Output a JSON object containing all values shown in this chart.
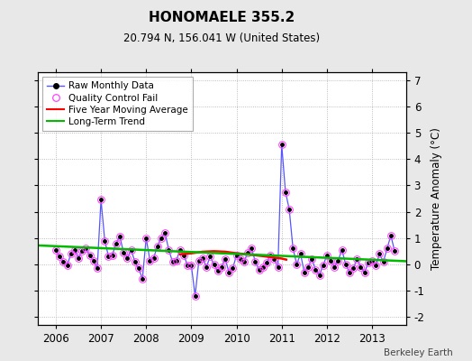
{
  "title": "HONOMAELE 355.2",
  "subtitle": "20.794 N, 156.041 W (United States)",
  "credit": "Berkeley Earth",
  "ylabel": "Temperature Anomaly (°C)",
  "ylim": [
    -2.3,
    7.3
  ],
  "yticks": [
    -2,
    -1,
    0,
    1,
    2,
    3,
    4,
    5,
    6,
    7
  ],
  "xlim_start": 2005.6,
  "xlim_end": 2013.75,
  "xticks": [
    2006,
    2007,
    2008,
    2009,
    2010,
    2011,
    2012,
    2013
  ],
  "bg_color": "#e8e8e8",
  "plot_bg_color": "#ffffff",
  "raw_line_color": "#5555ff",
  "raw_marker_color": "#000000",
  "qc_color": "#ff44ff",
  "moving_avg_color": "#ff0000",
  "trend_color": "#00bb00",
  "raw_data_x": [
    2006.0,
    2006.0833,
    2006.1667,
    2006.25,
    2006.3333,
    2006.4167,
    2006.5,
    2006.5833,
    2006.6667,
    2006.75,
    2006.8333,
    2006.9167,
    2007.0,
    2007.0833,
    2007.1667,
    2007.25,
    2007.3333,
    2007.4167,
    2007.5,
    2007.5833,
    2007.6667,
    2007.75,
    2007.8333,
    2007.9167,
    2008.0,
    2008.0833,
    2008.1667,
    2008.25,
    2008.3333,
    2008.4167,
    2008.5,
    2008.5833,
    2008.6667,
    2008.75,
    2008.8333,
    2008.9167,
    2009.0,
    2009.0833,
    2009.1667,
    2009.25,
    2009.3333,
    2009.4167,
    2009.5,
    2009.5833,
    2009.6667,
    2009.75,
    2009.8333,
    2009.9167,
    2010.0,
    2010.0833,
    2010.1667,
    2010.25,
    2010.3333,
    2010.4167,
    2010.5,
    2010.5833,
    2010.6667,
    2010.75,
    2010.8333,
    2010.9167,
    2011.0,
    2011.0833,
    2011.1667,
    2011.25,
    2011.3333,
    2011.4167,
    2011.5,
    2011.5833,
    2011.6667,
    2011.75,
    2011.8333,
    2011.9167,
    2012.0,
    2012.0833,
    2012.1667,
    2012.25,
    2012.3333,
    2012.4167,
    2012.5,
    2012.5833,
    2012.6667,
    2012.75,
    2012.8333,
    2012.9167,
    2013.0,
    2013.0833,
    2013.1667,
    2013.25,
    2013.3333,
    2013.4167,
    2013.5
  ],
  "raw_data_y": [
    0.55,
    0.3,
    0.1,
    -0.05,
    0.4,
    0.55,
    0.25,
    0.5,
    0.6,
    0.35,
    0.15,
    -0.15,
    2.45,
    0.9,
    0.3,
    0.35,
    0.8,
    1.05,
    0.45,
    0.25,
    0.55,
    0.1,
    -0.15,
    -0.55,
    1.0,
    0.15,
    0.25,
    0.7,
    1.0,
    1.2,
    0.55,
    0.1,
    0.15,
    0.55,
    0.35,
    -0.05,
    -0.05,
    -1.2,
    0.15,
    0.25,
    -0.1,
    0.3,
    0.0,
    -0.25,
    -0.1,
    0.2,
    -0.3,
    -0.15,
    0.35,
    0.2,
    0.1,
    0.45,
    0.6,
    0.1,
    -0.2,
    -0.1,
    0.05,
    0.35,
    0.2,
    -0.1,
    4.55,
    2.75,
    2.1,
    0.6,
    0.0,
    0.4,
    -0.3,
    -0.1,
    0.2,
    -0.2,
    -0.4,
    -0.05,
    0.35,
    0.15,
    -0.1,
    0.15,
    0.55,
    0.0,
    -0.3,
    -0.15,
    0.2,
    -0.1,
    -0.3,
    0.05,
    0.15,
    -0.05,
    0.4,
    0.1,
    0.6,
    1.1,
    0.5
  ],
  "moving_avg_x": [
    2008.75,
    2009.0,
    2009.25,
    2009.5,
    2009.75,
    2010.0,
    2010.25,
    2010.5,
    2010.75,
    2011.0,
    2011.1
  ],
  "moving_avg_y": [
    0.38,
    0.42,
    0.48,
    0.5,
    0.48,
    0.42,
    0.38,
    0.33,
    0.28,
    0.22,
    0.18
  ],
  "trend_x": [
    2005.6,
    2013.75
  ],
  "trend_y": [
    0.72,
    0.12
  ]
}
